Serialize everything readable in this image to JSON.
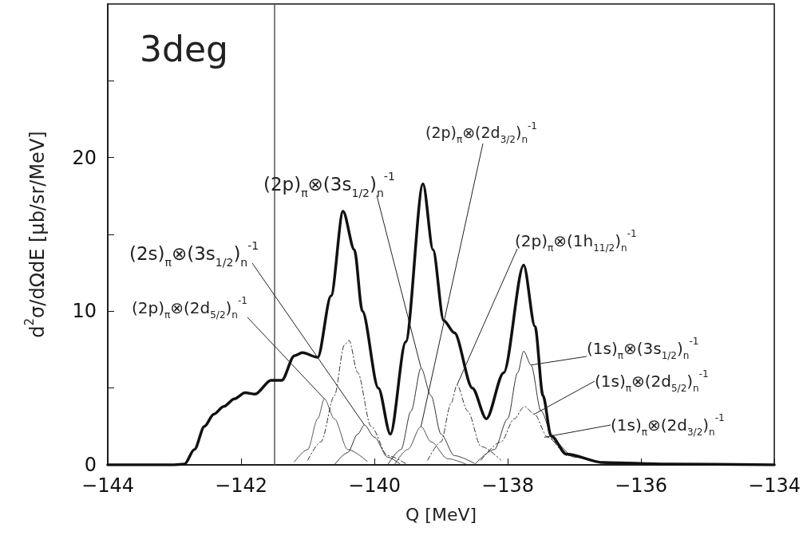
{
  "chart_data": {
    "type": "line",
    "xlabel": "Q [MeV]",
    "ylabel": "d$^{2}$σ/dΩdE [μb/sr/MeV]",
    "xlim": [
      -144,
      -134
    ],
    "xticks": [
      -144,
      -142,
      -140,
      -138,
      -136,
      -134
    ],
    "ylim": [
      0,
      30
    ],
    "yticks": [
      0,
      {
        "value": 5,
        "label": null
      },
      10,
      {
        "value": 15,
        "label": null
      },
      20,
      {
        "value": 25,
        "label": null
      }
    ],
    "marker": "none",
    "ref_lines": [
      {
        "axis": "x",
        "value": -141.5,
        "color": "#555555"
      }
    ],
    "series": [
      {
        "color": "#111111",
        "line_style": "solid",
        "x": [
          -144,
          -143,
          -142.85,
          -142.7,
          -142.55,
          -142.41,
          -142.26,
          -142.1,
          -141.94,
          -141.79,
          -141.55,
          -141.39,
          -141.2,
          -141.08,
          -140.85,
          -140.65,
          -140.47,
          -140.3,
          -140.18,
          -139.94,
          -139.76,
          -139.53,
          -139.27,
          -139.12,
          -138.96,
          -138.8,
          -138.53,
          -138.32,
          -138.06,
          -137.76,
          -137.59,
          -137.47,
          -137.35,
          -137.12,
          -136.56,
          -135.6,
          -134
        ],
        "values": [
          0,
          0,
          0.05,
          1.0,
          2.5,
          3.3,
          3.8,
          4.3,
          4.7,
          4.6,
          5.5,
          5.5,
          7.1,
          7.3,
          7.0,
          11,
          16.5,
          14,
          10,
          5,
          2.0,
          8,
          18.3,
          14,
          9.4,
          8.6,
          5,
          3.0,
          6,
          13.0,
          9,
          4.5,
          1.9,
          0.7,
          0.15,
          0.05,
          0
        ]
      },
      {
        "color": "#333333",
        "line_style": "solid",
        "x": [
          -138.5,
          -138.2,
          -138.0,
          -137.85,
          -137.76,
          -137.65,
          -137.5,
          -137.3,
          -137.0,
          -136.5,
          -136.0
        ],
        "values": [
          0,
          1,
          3,
          6,
          7.4,
          6.5,
          3.5,
          1.5,
          0.5,
          0.1,
          0
        ]
      },
      {
        "color": "#333333",
        "line_style": "dashed",
        "x": [
          -138.4,
          -138.1,
          -137.9,
          -137.75,
          -137.6,
          -137.4,
          -137.1,
          -136.6
        ],
        "values": [
          0.3,
          1.5,
          3,
          3.8,
          3.3,
          1.8,
          0.6,
          0.1
        ]
      },
      {
        "color": "#333333",
        "line_style": "solid",
        "x": [
          -139.8,
          -139.6,
          -139.45,
          -139.3,
          -139.15,
          -139.0,
          -138.8,
          -138.5
        ],
        "values": [
          0,
          1,
          3.5,
          6.3,
          4.5,
          2,
          0.6,
          0.1
        ]
      },
      {
        "color": "#333333",
        "line_style": "dotted",
        "x": [
          -139.7,
          -139.5,
          -139.3,
          -139.15,
          -138.9,
          -138.6
        ],
        "values": [
          0,
          1,
          2.5,
          1.5,
          0.4,
          0
        ]
      },
      {
        "color": "#333333",
        "line_style": "dashed",
        "x": [
          -139.2,
          -139.0,
          -138.85,
          -138.76,
          -138.6,
          -138.4,
          -138.1
        ],
        "values": [
          0.3,
          1.5,
          4,
          5.2,
          3.5,
          1.2,
          0.3
        ]
      },
      {
        "color": "#333333",
        "line_style": "solid",
        "x": [
          -140.6,
          -140.4,
          -140.25,
          -140.15,
          -140.0,
          -139.8,
          -139.6
        ],
        "values": [
          0,
          0.8,
          2,
          2.6,
          1.8,
          0.5,
          0
        ]
      },
      {
        "color": "#333333",
        "line_style": "dashed",
        "x": [
          -141.0,
          -140.8,
          -140.6,
          -140.45,
          -140.38,
          -140.25,
          -140.05,
          -139.8,
          -139.5
        ],
        "values": [
          0.3,
          1.5,
          4.5,
          7.8,
          8.1,
          6,
          2.5,
          0.6,
          0
        ]
      },
      {
        "color": "#333333",
        "line_style": "dotted",
        "x": [
          -141.2,
          -141.0,
          -140.85,
          -140.75,
          -140.6,
          -140.4,
          -140.1
        ],
        "values": [
          0.2,
          1,
          3,
          4.3,
          3,
          1,
          0.2
        ]
      }
    ],
    "annotations": [
      "3deg",
      {
        "text": "(2s)$_{π}$⊗(3s$_{1/2}$)$_{n}$$^{-1}$",
        "x": -140.15,
        "y": 2.6
      },
      {
        "text": "(2p)$_{π}$⊗(2d$_{5/2}$)$_{n}$$^{-1}$",
        "x": -140.75,
        "y": 4.3
      },
      {
        "text": "(2p)$_{π}$⊗(3s$_{1/2}$)$_{n}$$^{-1}$",
        "x": -139.3,
        "y": 6.3
      },
      {
        "text": "(2p)$_{π}$⊗(2d$_{3/2}$)$_{n}$$^{-1}$",
        "x": -139.3,
        "y": 2.5
      },
      {
        "text": "(2p)$_{π}$⊗(1h$_{11/2}$)$_{n}$$^{-1}$",
        "x": -138.76,
        "y": 5.2
      },
      {
        "text": "(1s)$_{π}$⊗(3s$_{1/2}$)$_{n}$$^{-1}$",
        "x": -137.65,
        "y": 6.5
      },
      {
        "text": "(1s)$_{π}$⊗(2d$_{5/2}$)$_{n}$$^{-1}$",
        "x": -137.6,
        "y": 3.3
      },
      {
        "text": "(1s)$_{π}$⊗(2d$_{3/2}$)$_{n}$$^{-1}$",
        "x": -137.45,
        "y": 1.8
      }
    ]
  }
}
